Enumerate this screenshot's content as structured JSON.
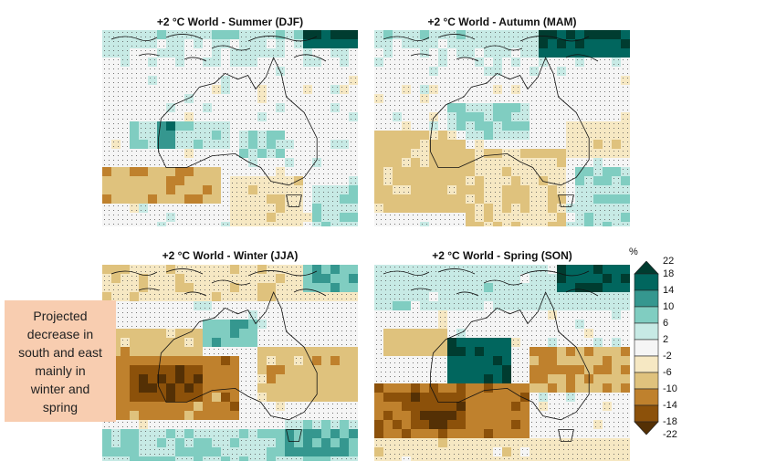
{
  "panels": [
    {
      "title": "+2 °C World - Summer (DJF)",
      "season": "DJF",
      "pattern": "summer"
    },
    {
      "title": "+2 °C World - Autumn (MAM)",
      "season": "MAM",
      "pattern": "autumn"
    },
    {
      "title": "+2 °C World - Winter (JJA)",
      "season": "JJA",
      "pattern": "winter"
    },
    {
      "title": "+2 °C World - Spring (SON)",
      "season": "SON",
      "pattern": "spring"
    }
  ],
  "callout": {
    "text": "Projected decrease in south and east mainly in winter and spring"
  },
  "colorbar": {
    "unit": "%",
    "ticks": [
      "22",
      "18",
      "14",
      "10",
      "6",
      "2",
      "-2",
      "-6",
      "-10",
      "-14",
      "-18",
      "-22"
    ],
    "bins": [
      {
        "range": "18 to 22",
        "color": "#003c30"
      },
      {
        "range": "14 to 18",
        "color": "#01665e"
      },
      {
        "range": "10 to 14",
        "color": "#35978f"
      },
      {
        "range": "6 to 10",
        "color": "#80cdc1"
      },
      {
        "range": "2 to 6",
        "color": "#c7eae5"
      },
      {
        "range": "-2 to 2",
        "color": "#f5f5f5"
      },
      {
        "range": "-6 to -2",
        "color": "#f6e8c3"
      },
      {
        "range": "-10 to -6",
        "color": "#dfc27d"
      },
      {
        "range": "-14 to -10",
        "color": "#bf812d"
      },
      {
        "range": "-18 to -14",
        "color": "#8c510a"
      },
      {
        "range": "-22 to -18",
        "color": "#543005"
      }
    ]
  }
}
